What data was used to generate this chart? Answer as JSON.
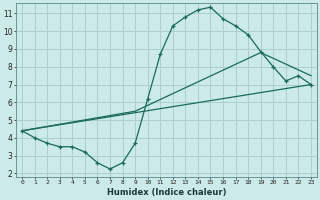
{
  "xlabel": "Humidex (Indice chaleur)",
  "bg_color": "#cceae8",
  "grid_color": "#aacfcc",
  "line_color": "#1a6b5a",
  "xlim": [
    -0.5,
    23.5
  ],
  "ylim": [
    1.8,
    11.6
  ],
  "xticks": [
    0,
    1,
    2,
    3,
    4,
    5,
    6,
    7,
    8,
    9,
    10,
    11,
    12,
    13,
    14,
    15,
    16,
    17,
    18,
    19,
    20,
    21,
    22,
    23
  ],
  "yticks": [
    2,
    3,
    4,
    5,
    6,
    7,
    8,
    9,
    10,
    11
  ],
  "line1_x": [
    0,
    1,
    2,
    3,
    4,
    5,
    6,
    7,
    8,
    9,
    10,
    11,
    12,
    13,
    14,
    15,
    16,
    17,
    18,
    19,
    20,
    21,
    22,
    23
  ],
  "line1_y": [
    4.4,
    4.0,
    3.7,
    3.5,
    3.5,
    3.2,
    2.6,
    2.25,
    2.6,
    3.7,
    6.2,
    8.7,
    10.3,
    10.8,
    11.2,
    11.35,
    10.7,
    10.3,
    9.8,
    8.85,
    8.0,
    7.2,
    7.5,
    7.0
  ],
  "line2_x": [
    0,
    23
  ],
  "line2_y": [
    4.4,
    7.0
  ],
  "line3_x": [
    0,
    9,
    19,
    23
  ],
  "line3_y": [
    4.4,
    5.5,
    8.8,
    7.5
  ]
}
